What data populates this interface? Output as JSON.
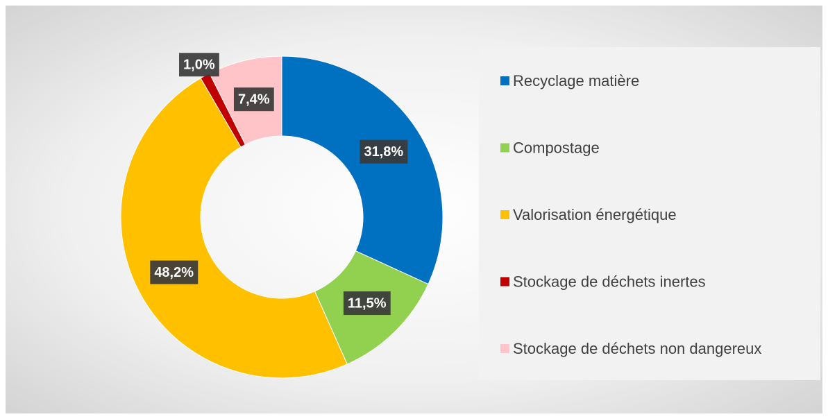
{
  "chart_data": {
    "type": "pie",
    "donut": true,
    "categories": [
      "Recyclage matière",
      "Compostage",
      "Valorisation énergétique",
      "Stockage de déchets inertes",
      "Stockage de déchets non dangereux"
    ],
    "values": [
      31.8,
      11.5,
      48.2,
      1.0,
      7.4
    ],
    "value_labels": [
      "31,8%",
      "11,5%",
      "48,2%",
      "1,0%",
      "7,4%"
    ],
    "colors": [
      "#0070c0",
      "#92d050",
      "#ffc000",
      "#c00000",
      "#ffc4c8"
    ],
    "legend": "right"
  }
}
